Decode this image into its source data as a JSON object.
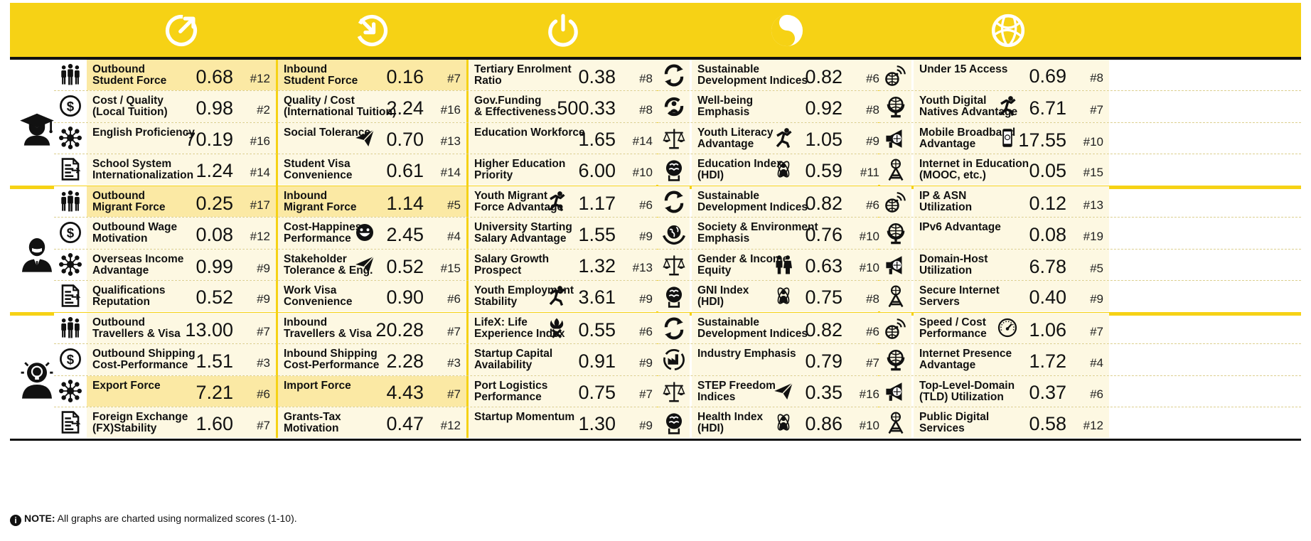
{
  "header_icons": [
    "outbound-arrow-icon",
    "inbound-arrow-icon",
    "power-icon",
    "yin-yang-icon",
    "globe-icon"
  ],
  "groups": [
    {
      "icon": "graduate-icon",
      "rows": [
        {
          "icon": "people-icon",
          "cells": [
            {
              "label": "Outbound\nStudent Force",
              "value": "0.68",
              "rank": "#12",
              "hl": true
            },
            {
              "label": "Inbound\nStudent Force",
              "value": "0.16",
              "rank": "#7",
              "hl": true
            },
            {
              "label": "Tertiary Enrolment\nRatio",
              "value": "0.38",
              "rank": "#8"
            },
            {
              "label": "Sustainable\nDevelopment Indices",
              "value": "0.82",
              "rank": "#6",
              "icon": "cycle-icon"
            },
            {
              "label": "Under 15 Access",
              "value": "0.69",
              "rank": "#8",
              "icon": "signal-globe-icon",
              "lo": true
            }
          ]
        },
        {
          "icon": "dollar-icon",
          "cells": [
            {
              "label": "Cost / Quality\n(Local Tuition)",
              "value": "0.98",
              "rank": "#2"
            },
            {
              "label": "Quality / Cost\n(International Tuition)",
              "value": "2.24",
              "rank": "#16"
            },
            {
              "label": "Gov.Funding\n& Effectiveness",
              "value": "500.33",
              "rank": "#8"
            },
            {
              "label": "Well-being\nEmphasis",
              "value": "0.92",
              "rank": "#8",
              "icon": "wellbeing-icon"
            },
            {
              "label": "Youth Digital\nNatives Advantage",
              "value": "6.71",
              "rank": "#7",
              "icon": "globe-stand-icon",
              "mini": "running-figure-icon"
            }
          ]
        },
        {
          "icon": "network-icon",
          "cells": [
            {
              "label": "English Proficiency",
              "value": "70.19",
              "rank": "#16",
              "lo": true
            },
            {
              "label": "Social Tolerance",
              "value": "0.70",
              "rank": "#13",
              "lo": true,
              "mini": "paper-plane-icon"
            },
            {
              "label": "Education Workforce",
              "value": "1.65",
              "rank": "#14",
              "lo": true
            },
            {
              "label": "Youth Literacy\nAdvantage",
              "value": "1.05",
              "rank": "#9",
              "icon": "scales-icon",
              "mini": "running-figure-icon",
              "lo": true
            },
            {
              "label": "Mobile Broadband\nAdvantage",
              "value": "17.55",
              "rank": "#10",
              "icon": "megaphone-icon",
              "mini": "mobile-phone-icon"
            }
          ]
        },
        {
          "icon": "document-icon",
          "cells": [
            {
              "label": "School System\nInternationalization",
              "value": "1.24",
              "rank": "#14",
              "lo": true
            },
            {
              "label": "Student Visa\nConvenience",
              "value": "0.61",
              "rank": "#14",
              "lo": true
            },
            {
              "label": "Higher Education\nPriority",
              "value": "6.00",
              "rank": "#10",
              "lo": true
            },
            {
              "label": "Education Index\n(HDI)",
              "value": "0.59",
              "rank": "#11",
              "icon": "brain-icon",
              "mini": "atom-person-icon",
              "lo": true
            },
            {
              "label": "Internet in Education\n(MOOC, etc.)",
              "value": "0.05",
              "rank": "#15",
              "icon": "tower-icon",
              "lo": true
            }
          ]
        }
      ]
    },
    {
      "icon": "businessman-icon",
      "rows": [
        {
          "icon": "people-icon",
          "cells": [
            {
              "label": "Outbound\nMigrant Force",
              "value": "0.25",
              "rank": "#17",
              "hl": true
            },
            {
              "label": "Inbound\nMigrant Force",
              "value": "1.14",
              "rank": "#5",
              "hl": true
            },
            {
              "label": "Youth Migrant\nForce Advantage",
              "value": "1.17",
              "rank": "#6",
              "mini": "running-figure-icon"
            },
            {
              "label": "Sustainable\nDevelopment Indices",
              "value": "0.82",
              "rank": "#6",
              "icon": "cycle-icon"
            },
            {
              "label": "IP & ASN\nUtilization",
              "value": "0.12",
              "rank": "#13",
              "icon": "signal-globe-icon"
            }
          ]
        },
        {
          "icon": "dollar-icon",
          "cells": [
            {
              "label": "Outbound Wage\nMotivation",
              "value": "0.08",
              "rank": "#12"
            },
            {
              "label": "Cost-Happiness\nPerformance",
              "value": "2.45",
              "rank": "#4",
              "mini": "smiley-icon"
            },
            {
              "label": "University Starting\nSalary Advantage",
              "value": "1.55",
              "rank": "#9"
            },
            {
              "label": "Society & Environment\nEmphasis",
              "value": "0.76",
              "rank": "#10",
              "icon": "earth-hands-icon"
            },
            {
              "label": "IPv6 Advantage",
              "value": "0.08",
              "rank": "#19",
              "icon": "globe-stand-icon",
              "lo": true
            }
          ]
        },
        {
          "icon": "network-icon",
          "cells": [
            {
              "label": "Overseas Income\nAdvantage",
              "value": "0.99",
              "rank": "#9"
            },
            {
              "label": "Stakeholder\nTolerance & Eng.",
              "value": "0.52",
              "rank": "#15",
              "mini": "paper-plane-icon"
            },
            {
              "label": "Salary Growth\nProspect",
              "value": "1.32",
              "rank": "#13",
              "lo": true
            },
            {
              "label": "Gender & Income\nEquity",
              "value": "0.63",
              "rank": "#10",
              "icon": "scales-icon",
              "mini": "couple-icon",
              "lo": true
            },
            {
              "label": "Domain-Host\nUtilization",
              "value": "6.78",
              "rank": "#5",
              "icon": "megaphone-icon"
            }
          ]
        },
        {
          "icon": "document-icon",
          "cells": [
            {
              "label": "Qualifications\nReputation",
              "value": "0.52",
              "rank": "#9",
              "lo": true
            },
            {
              "label": "Work Visa\nConvenience",
              "value": "0.90",
              "rank": "#6",
              "lo": true
            },
            {
              "label": "Youth Employment\nStability",
              "value": "3.61",
              "rank": "#9",
              "mini": "running-figure-icon",
              "lo": true
            },
            {
              "label": "GNI Index\n(HDI)",
              "value": "0.75",
              "rank": "#8",
              "icon": "brain-icon",
              "mini": "atom-person-icon",
              "lo": true
            },
            {
              "label": "Secure Internet\nServers",
              "value": "0.40",
              "rank": "#9",
              "icon": "tower-icon",
              "lo": true
            }
          ]
        }
      ]
    },
    {
      "icon": "lightbulb-person-icon",
      "rows": [
        {
          "icon": "people-icon",
          "cells": [
            {
              "label": "Outbound\nTravellers & Visa",
              "value": "13.00",
              "rank": "#7"
            },
            {
              "label": "Inbound\nTravellers & Visa",
              "value": "20.28",
              "rank": "#7"
            },
            {
              "label": "LifeX: Life\nExperience Index",
              "value": "0.55",
              "rank": "#6",
              "mini": "flame-figure-icon"
            },
            {
              "label": "Sustainable\nDevelopment Indices",
              "value": "0.82",
              "rank": "#6",
              "icon": "cycle-icon"
            },
            {
              "label": "Speed / Cost\nPerformance",
              "value": "1.06",
              "rank": "#7",
              "icon": "signal-globe-icon",
              "mini": "speedometer-icon"
            }
          ]
        },
        {
          "icon": "dollar-icon",
          "cells": [
            {
              "label": "Outbound Shipping\nCost-Performance",
              "value": "1.51",
              "rank": "#3",
              "lo": true
            },
            {
              "label": "Inbound Shipping\nCost-Performance",
              "value": "2.28",
              "rank": "#3",
              "lo": true
            },
            {
              "label": "Startup Capital\nAvailability",
              "value": "0.91",
              "rank": "#9",
              "lo": true
            },
            {
              "label": "Industry Emphasis",
              "value": "0.79",
              "rank": "#7",
              "icon": "factory-hands-icon",
              "lo": true
            },
            {
              "label": "Internet Presence\nAdvantage",
              "value": "1.72",
              "rank": "#4",
              "icon": "globe-stand-icon",
              "lo": true
            }
          ]
        },
        {
          "icon": "network-icon",
          "cells": [
            {
              "label": "Export Force",
              "value": "7.21",
              "rank": "#6",
              "hl": true,
              "lo": true
            },
            {
              "label": "Import Force",
              "value": "4.43",
              "rank": "#7",
              "hl": true,
              "lo": true
            },
            {
              "label": "Port Logistics\nPerformance",
              "value": "0.75",
              "rank": "#7",
              "lo": true
            },
            {
              "label": "STEP Freedom\nIndices",
              "value": "0.35",
              "rank": "#16",
              "icon": "scales-icon",
              "mini": "paper-plane-icon",
              "lo": true
            },
            {
              "label": "Top-Level-Domain\n(TLD) Utilization",
              "value": "0.37",
              "rank": "#6",
              "icon": "megaphone-icon",
              "lo": true
            }
          ]
        },
        {
          "icon": "document-icon",
          "cells": [
            {
              "label": "Foreign Exchange\n(FX)Stability",
              "value": "1.60",
              "rank": "#7",
              "lo": true
            },
            {
              "label": "Grants-Tax\nMotivation",
              "value": "0.47",
              "rank": "#12",
              "lo": true
            },
            {
              "label": "Startup Momentum",
              "value": "1.30",
              "rank": "#9",
              "lo": true
            },
            {
              "label": "Health Index\n(HDI)",
              "value": "0.86",
              "rank": "#10",
              "icon": "brain-icon",
              "mini": "atom-person-icon",
              "lo": true
            },
            {
              "label": "Public Digital\nServices",
              "value": "0.58",
              "rank": "#12",
              "icon": "tower-icon",
              "lo": true
            }
          ]
        }
      ]
    }
  ],
  "note": {
    "bold": "NOTE:",
    "text": " All graphs are charted using normalized scores (1-10)."
  }
}
